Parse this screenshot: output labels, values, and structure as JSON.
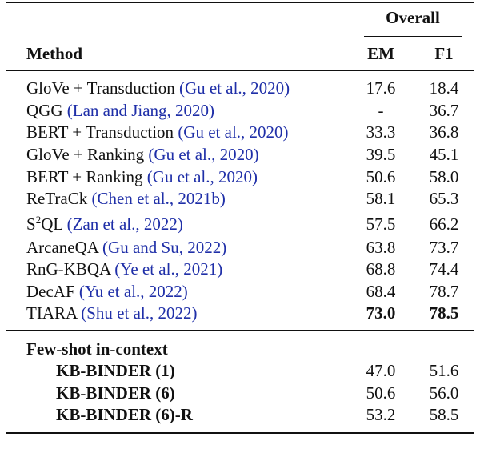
{
  "table": {
    "group_header": "Overall",
    "columns": [
      "Method",
      "EM",
      "F1"
    ],
    "rows": [
      {
        "method": "GloVe + Transduction",
        "citation": "(Gu et al., 2020)",
        "em": "17.6",
        "f1": "18.4"
      },
      {
        "method": "QGG",
        "citation": "(Lan and Jiang, 2020)",
        "em": "-",
        "f1": "36.7"
      },
      {
        "method": "BERT + Transduction",
        "citation": "(Gu et al., 2020)",
        "em": "33.3",
        "f1": "36.8"
      },
      {
        "method": "GloVe + Ranking",
        "citation": "(Gu et al., 2020)",
        "em": "39.5",
        "f1": "45.1"
      },
      {
        "method": "BERT + Ranking",
        "citation": "(Gu et al., 2020)",
        "em": "50.6",
        "f1": "58.0"
      },
      {
        "method": "ReTraCk",
        "citation": "(Chen et al., 2021b)",
        "em": "58.1",
        "f1": "65.3"
      },
      {
        "method": "S",
        "method_sup": "2",
        "method_rest": "QL",
        "citation": "(Zan et al., 2022)",
        "em": "57.5",
        "f1": "66.2"
      },
      {
        "method": "ArcaneQA",
        "citation": "(Gu and Su, 2022)",
        "em": "63.8",
        "f1": "73.7"
      },
      {
        "method": "RnG-KBQA",
        "citation": "(Ye et al., 2021)",
        "em": "68.8",
        "f1": "74.4"
      },
      {
        "method": "DecAF",
        "citation": "(Yu et al., 2022)",
        "em": "68.4",
        "f1": "78.7"
      },
      {
        "method": "TIARA",
        "citation": "(Shu et al., 2022)",
        "em": "73.0",
        "f1": "78.5",
        "bold_values": true
      }
    ],
    "section": {
      "title": "Few-shot in-context",
      "rows": [
        {
          "method": "KB-BINDER (1)",
          "em": "47.0",
          "f1": "51.6"
        },
        {
          "method": "KB-BINDER (6)",
          "em": "50.6",
          "f1": "56.0"
        },
        {
          "method": "KB-BINDER (6)-R",
          "em": "53.2",
          "f1": "58.5"
        }
      ]
    }
  }
}
